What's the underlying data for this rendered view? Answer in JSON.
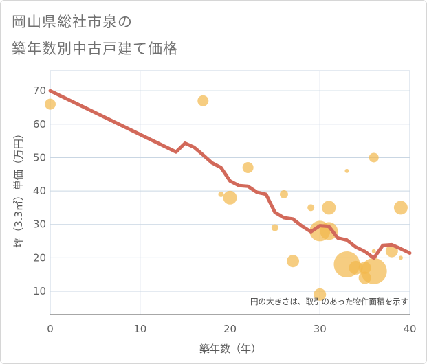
{
  "title_line1": "岡山県総社市泉の",
  "title_line2": "築年数別中古戸建て価格",
  "chart_data": {
    "type": "scatter",
    "xlabel": "築年数（年）",
    "ylabel": "坪（3.3㎡）単価（万円）",
    "xlim": [
      0,
      40
    ],
    "ylim": [
      3,
      76
    ],
    "xticks": [
      0,
      10,
      20,
      30,
      40
    ],
    "yticks": [
      10,
      20,
      30,
      40,
      50,
      60,
      70
    ],
    "grid": true,
    "note": "円の大きさは、取引のあった物件面積を示す",
    "colors": {
      "bubble": "#f2b84b",
      "line": "#d2695a",
      "grid": "#c9d6e3",
      "axis": "#8a8a8a"
    },
    "bubbles": [
      {
        "x": 0,
        "y": 66,
        "r": 8
      },
      {
        "x": 17,
        "y": 67,
        "r": 8
      },
      {
        "x": 19,
        "y": 39,
        "r": 4
      },
      {
        "x": 20,
        "y": 38,
        "r": 10
      },
      {
        "x": 22,
        "y": 47,
        "r": 8
      },
      {
        "x": 25,
        "y": 29,
        "r": 5
      },
      {
        "x": 26,
        "y": 39,
        "r": 6
      },
      {
        "x": 27,
        "y": 19,
        "r": 9
      },
      {
        "x": 29,
        "y": 35,
        "r": 5
      },
      {
        "x": 30,
        "y": 28,
        "r": 15
      },
      {
        "x": 30,
        "y": 9,
        "r": 9
      },
      {
        "x": 31,
        "y": 35,
        "r": 10
      },
      {
        "x": 31,
        "y": 28,
        "r": 13
      },
      {
        "x": 33,
        "y": 46,
        "r": 3
      },
      {
        "x": 33,
        "y": 18,
        "r": 19
      },
      {
        "x": 34,
        "y": 17,
        "r": 10
      },
      {
        "x": 35,
        "y": 17,
        "r": 9
      },
      {
        "x": 35,
        "y": 14,
        "r": 9
      },
      {
        "x": 36,
        "y": 50,
        "r": 7
      },
      {
        "x": 36,
        "y": 16,
        "r": 19
      },
      {
        "x": 36,
        "y": 22,
        "r": 3
      },
      {
        "x": 38,
        "y": 22,
        "r": 9
      },
      {
        "x": 39,
        "y": 35,
        "r": 10
      },
      {
        "x": 39,
        "y": 20,
        "r": 3
      }
    ],
    "series": [
      {
        "x": [
          0,
          14,
          15,
          16,
          17,
          18,
          19,
          20,
          21,
          22,
          23,
          24,
          25,
          26,
          27,
          28,
          29,
          30,
          31,
          32,
          33,
          34,
          35,
          36,
          37,
          38,
          39,
          40
        ],
        "values": [
          70,
          51.7,
          54.3,
          53.1,
          50.8,
          48.4,
          47,
          43,
          41.6,
          41.4,
          39.6,
          39,
          33.6,
          32,
          31.6,
          29.5,
          27.8,
          29.6,
          29.4,
          25.9,
          25.3,
          23.2,
          21.9,
          19.9,
          23.7,
          23.9,
          22.7,
          21.4
        ]
      }
    ]
  }
}
